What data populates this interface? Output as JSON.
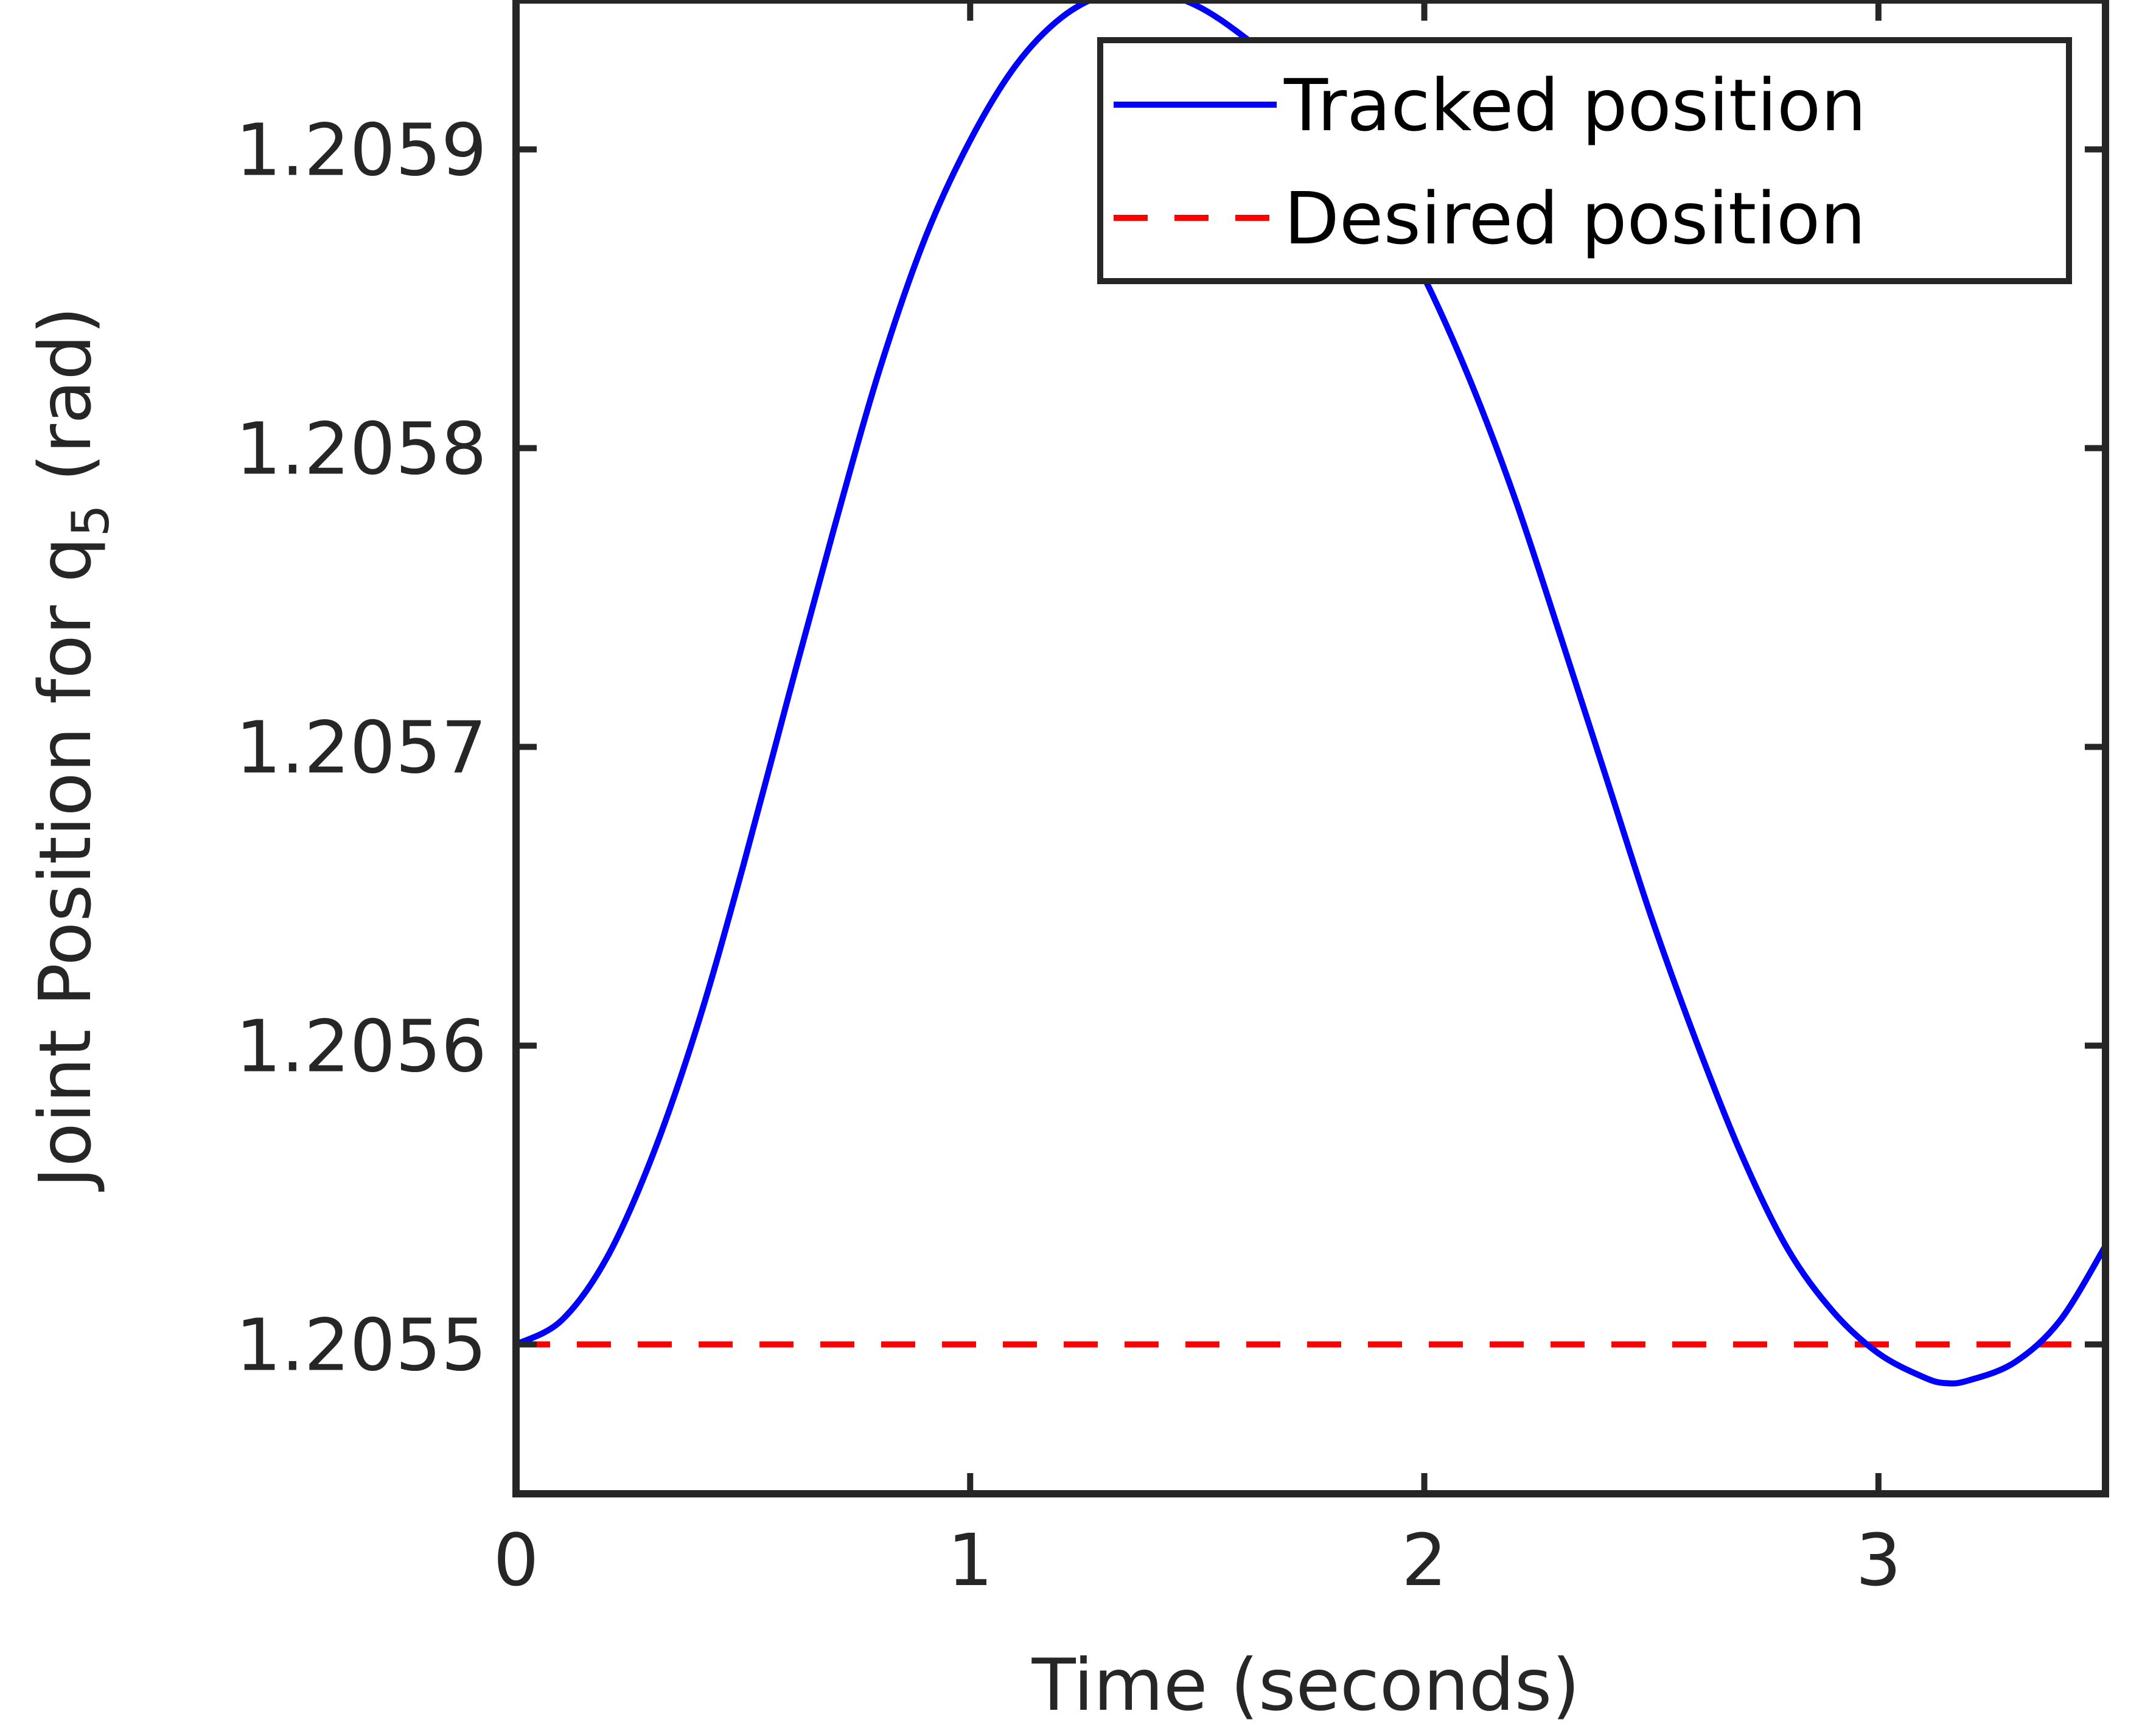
{
  "chart_data": {
    "type": "line",
    "title": "",
    "xlabel": "Time (seconds)",
    "ylabel": {
      "prefix": "Joint Position for q",
      "subscript": "5",
      "suffix": " (rad)"
    },
    "xlim": [
      0,
      3.5
    ],
    "ylim": [
      1.20545,
      1.20595
    ],
    "xticks": [
      0,
      1,
      2,
      3
    ],
    "xtick_labels": [
      "0",
      "1",
      "2",
      "3"
    ],
    "yticks": [
      1.2055,
      1.2056,
      1.2057,
      1.2058,
      1.2059
    ],
    "ytick_labels": [
      "1.2055",
      "1.2056",
      "1.2057",
      "1.2058",
      "1.2059"
    ],
    "grid": false,
    "legend_position": "top-right",
    "series": [
      {
        "name": "Tracked position",
        "color": "#0000ff",
        "style": "solid",
        "x": [
          0,
          0.1,
          0.2,
          0.3,
          0.4,
          0.5,
          0.6,
          0.7,
          0.8,
          0.9,
          1.0,
          1.1,
          1.2,
          1.3,
          1.4,
          1.5,
          1.6,
          1.7,
          1.8,
          1.9,
          2.0,
          2.1,
          2.2,
          2.3,
          2.4,
          2.5,
          2.6,
          2.7,
          2.8,
          2.9,
          3.0,
          3.1,
          3.15,
          3.2,
          3.3,
          3.4,
          3.5
        ],
        "y": [
          1.2055,
          1.205508,
          1.205529,
          1.205563,
          1.205607,
          1.20566,
          1.205717,
          1.205773,
          1.205826,
          1.20587,
          1.205903,
          1.205928,
          1.205944,
          1.205952,
          1.205953,
          1.205948,
          1.205938,
          1.205925,
          1.205907,
          1.205885,
          1.205857,
          1.205823,
          1.205783,
          1.205737,
          1.20569,
          1.205643,
          1.205601,
          1.205563,
          1.205532,
          1.205511,
          1.205497,
          1.205489,
          1.205487,
          1.205488,
          1.205494,
          1.205508,
          1.205533
        ]
      },
      {
        "name": "Desired position",
        "color": "#ff0000",
        "style": "dashed",
        "x": [
          0,
          3.5
        ],
        "y": [
          1.2055,
          1.2055
        ]
      }
    ]
  }
}
